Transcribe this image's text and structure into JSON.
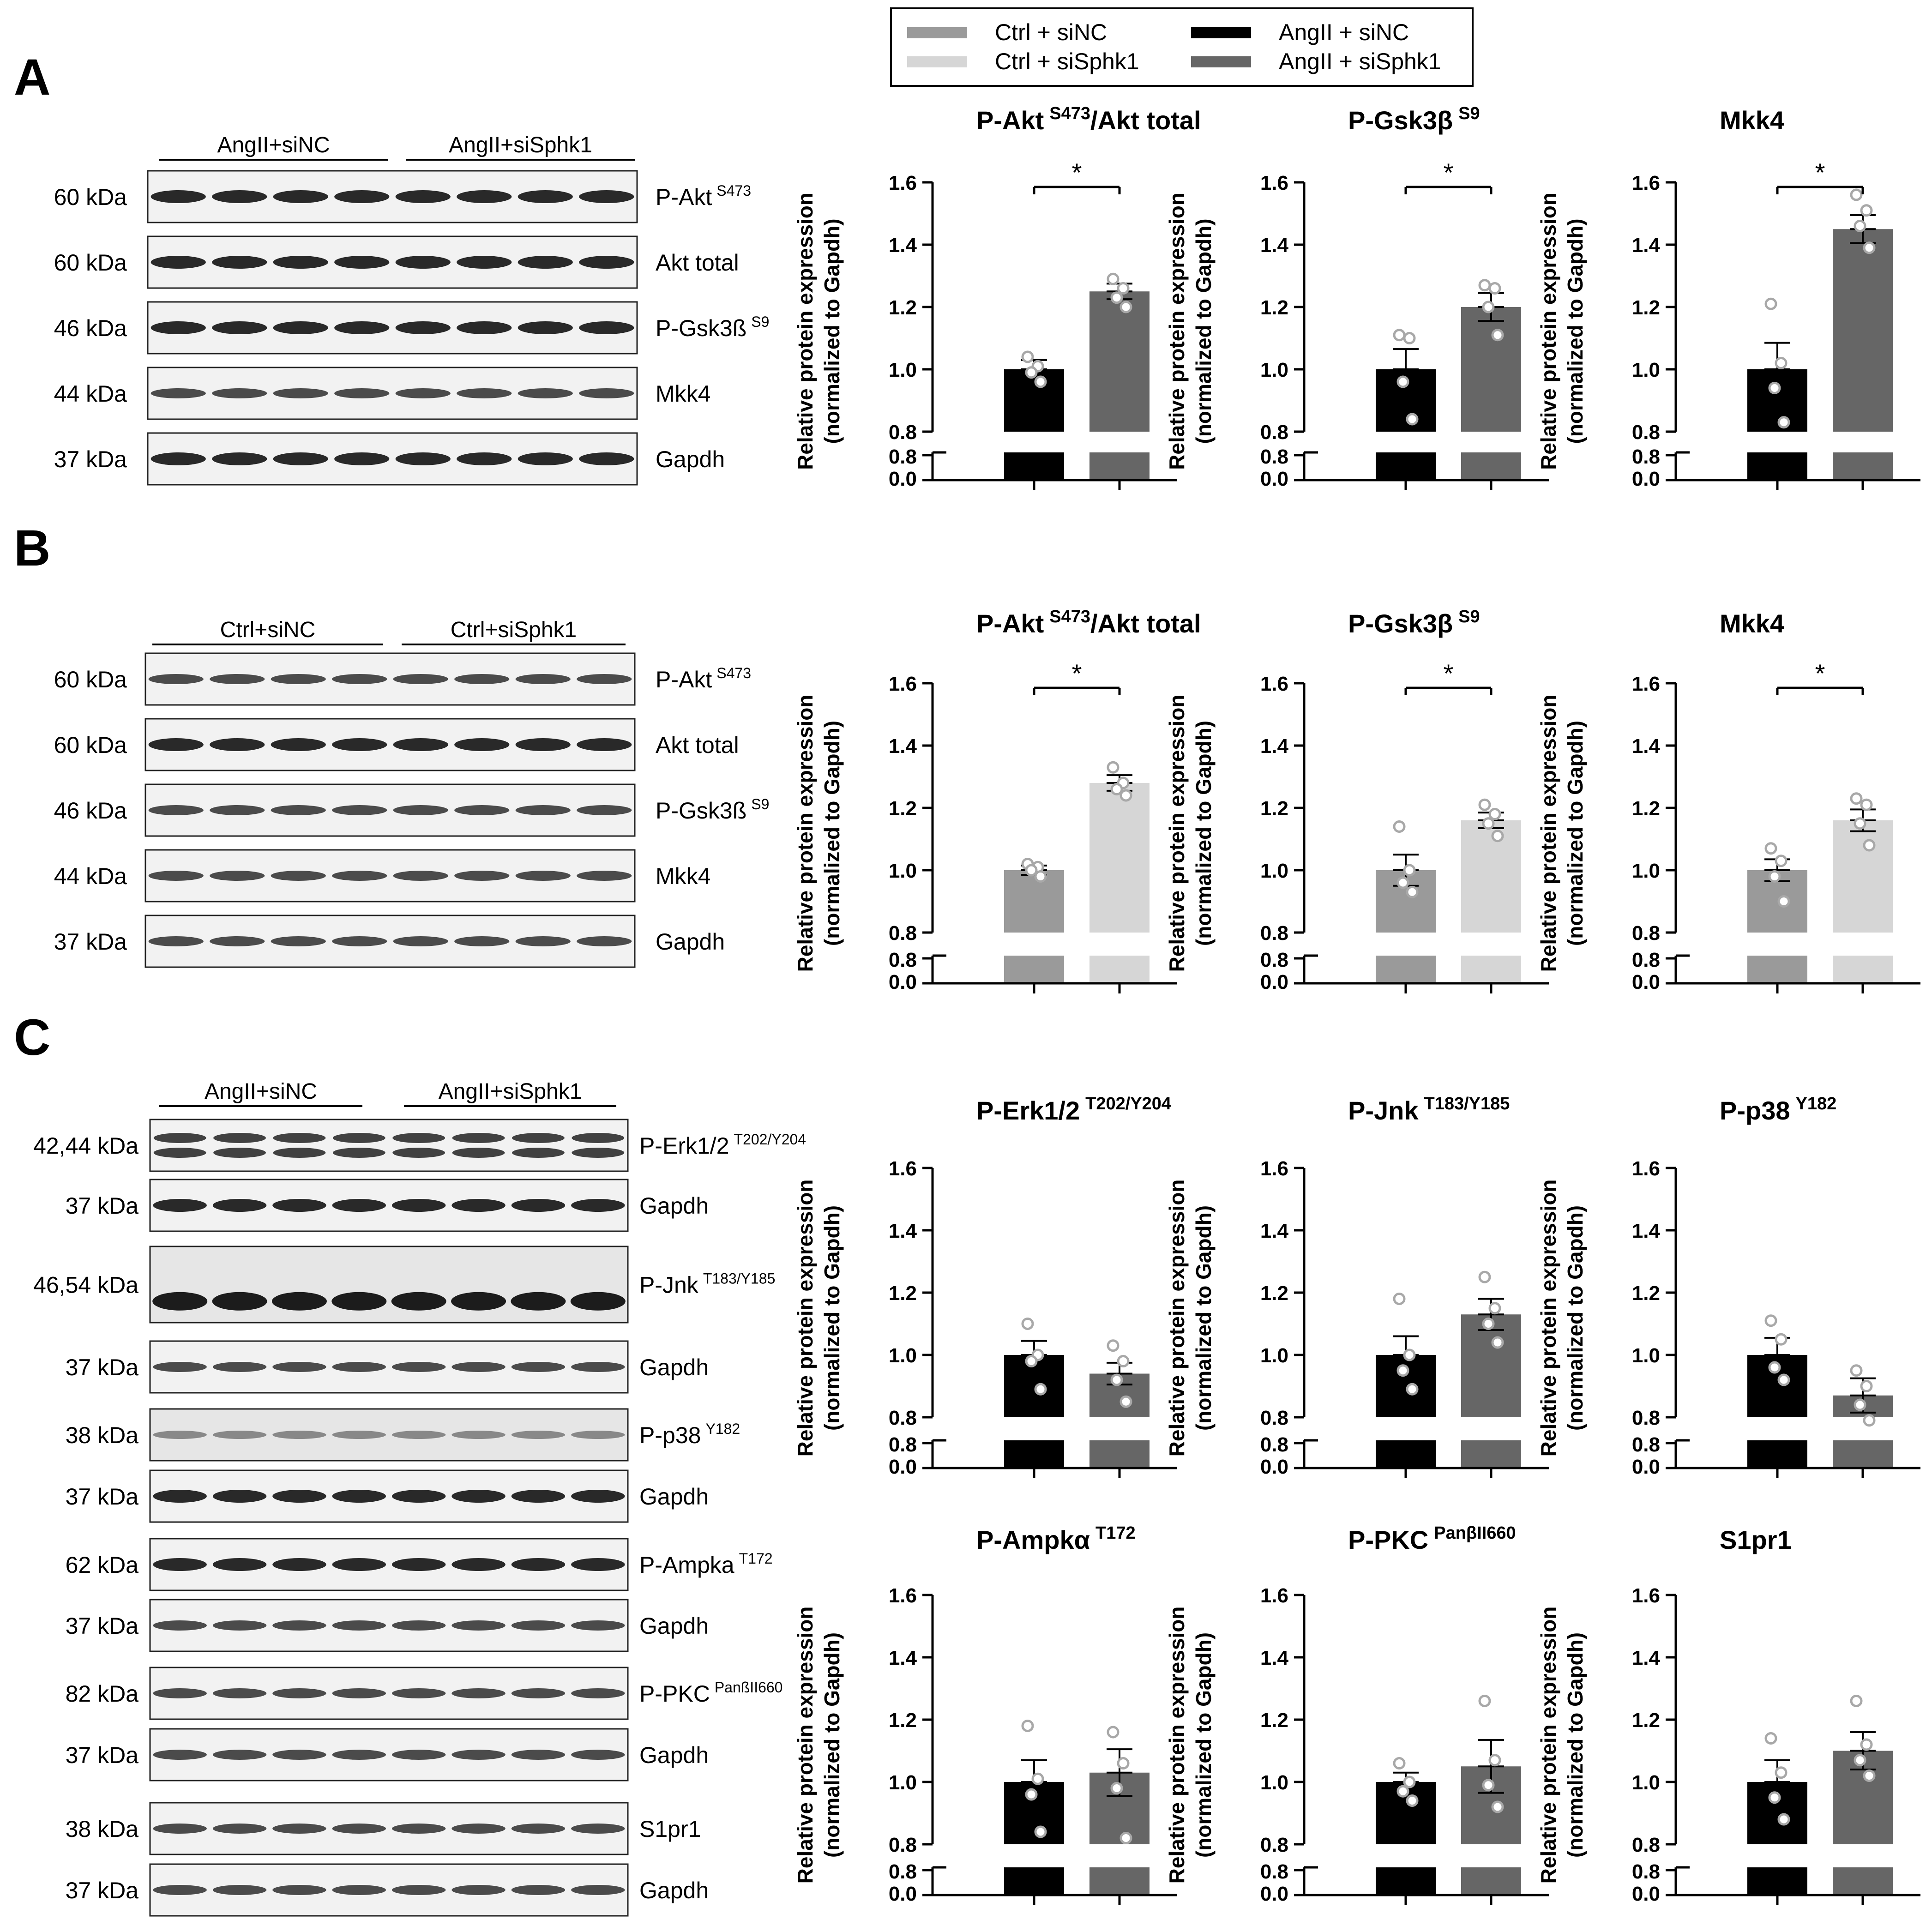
{
  "legend": {
    "entries": [
      {
        "label": "Ctrl + siNC",
        "color": "#9a9a9a"
      },
      {
        "label": "Ctrl + siSphk1",
        "color": "#d6d6d6"
      },
      {
        "label": "AngII + siNC",
        "color": "#000000"
      },
      {
        "label": "AngII + siSphk1",
        "color": "#666666"
      }
    ]
  },
  "panels": [
    {
      "letter": "A",
      "blots": {
        "groups": [
          "AngII+siNC",
          "AngII+siSphk1"
        ],
        "rows": [
          {
            "kda": "60 kDa",
            "name": "P-Akt",
            "sup": "S473",
            "tone": "dark"
          },
          {
            "kda": "60 kDa",
            "name": "Akt total",
            "sup": "",
            "tone": "dark"
          },
          {
            "kda": "46 kDa",
            "name": "P-Gsk3ß",
            "sup": "S9",
            "tone": "dark"
          },
          {
            "kda": "44 kDa",
            "name": "Mkk4",
            "sup": "",
            "tone": "mid"
          },
          {
            "kda": "37 kDa",
            "name": "Gapdh",
            "sup": "",
            "tone": "dark"
          }
        ]
      }
    },
    {
      "letter": "B",
      "blots": {
        "groups": [
          "Ctrl+siNC",
          "Ctrl+siSphk1"
        ],
        "rows": [
          {
            "kda": "60 kDa",
            "name": "P-Akt",
            "sup": "S473",
            "tone": "mid"
          },
          {
            "kda": "60 kDa",
            "name": "Akt total",
            "sup": "",
            "tone": "dark"
          },
          {
            "kda": "46 kDa",
            "name": "P-Gsk3ß",
            "sup": "S9",
            "tone": "mid"
          },
          {
            "kda": "44 kDa",
            "name": "Mkk4",
            "sup": "",
            "tone": "mid"
          },
          {
            "kda": "37 kDa",
            "name": "Gapdh",
            "sup": "",
            "tone": "mid"
          }
        ]
      }
    },
    {
      "letter": "C",
      "blots": {
        "groups": [
          "AngII+siNC",
          "AngII+siSphk1"
        ],
        "rows": [
          {
            "kda": "42,44 kDa",
            "name": "P-Erk1/2",
            "sup": "T202/Y204",
            "tone": "double"
          },
          {
            "kda": "37 kDa",
            "name": "Gapdh",
            "sup": "",
            "tone": "dark"
          },
          {
            "kda": "46,54 kDa",
            "name": "P-Jnk",
            "sup": "T183/Y185",
            "tone": "jnk"
          },
          {
            "kda": "37 kDa",
            "name": "Gapdh",
            "sup": "",
            "tone": "mid"
          },
          {
            "kda": "38 kDa",
            "name": "P-p38",
            "sup": "Y182",
            "tone": "faint"
          },
          {
            "kda": "37 kDa",
            "name": "Gapdh",
            "sup": "",
            "tone": "dark"
          },
          {
            "kda": "62 kDa",
            "name": "P-Ampka",
            "sup": "T172",
            "tone": "dark"
          },
          {
            "kda": "37 kDa",
            "name": "Gapdh",
            "sup": "",
            "tone": "mid"
          },
          {
            "kda": "82 kDa",
            "name": "P-PKC",
            "sup": "PanßII660",
            "tone": "mid"
          },
          {
            "kda": "37 kDa",
            "name": "Gapdh",
            "sup": "",
            "tone": "mid"
          },
          {
            "kda": "38 kDa",
            "name": "S1pr1",
            "sup": "",
            "tone": "mid"
          },
          {
            "kda": "37 kDa",
            "name": "Gapdh",
            "sup": "",
            "tone": "mid"
          }
        ]
      }
    }
  ],
  "axis": {
    "ylabel_line1": "Relative protein expression",
    "ylabel_line2": "(normalized to Gapdh)",
    "upper_ticks": [
      "1.6",
      "1.4",
      "1.2",
      "1.0",
      "0.8"
    ],
    "lower_ticks": [
      "0.8",
      "0.0"
    ]
  },
  "chart_data": [
    {
      "type": "bar",
      "panel": "A",
      "title": "P-Akt",
      "title_sup": "S473",
      "title_suffix": "/Akt total",
      "categories": [
        "AngII + siNC",
        "AngII + siSphk1"
      ],
      "colors": [
        "#000000",
        "#666666"
      ],
      "values": [
        1.0,
        1.25
      ],
      "errors": [
        0.03,
        0.025
      ],
      "points": [
        [
          1.04,
          1.01,
          0.99,
          0.96
        ],
        [
          1.29,
          1.26,
          1.23,
          1.2
        ]
      ],
      "significance": "*",
      "ylim": [
        0.0,
        1.6
      ]
    },
    {
      "type": "bar",
      "panel": "A",
      "title": "P-Gsk3β",
      "title_sup": "S9",
      "title_suffix": "",
      "categories": [
        "AngII + siNC",
        "AngII + siSphk1"
      ],
      "colors": [
        "#000000",
        "#666666"
      ],
      "values": [
        1.0,
        1.2
      ],
      "errors": [
        0.065,
        0.045
      ],
      "points": [
        [
          1.11,
          1.1,
          0.96,
          0.84
        ],
        [
          1.27,
          1.26,
          1.2,
          1.11
        ]
      ],
      "significance": "*",
      "ylim": [
        0.0,
        1.6
      ]
    },
    {
      "type": "bar",
      "panel": "A",
      "title": "Mkk4",
      "title_sup": "",
      "title_suffix": "",
      "categories": [
        "AngII + siNC",
        "AngII + siSphk1"
      ],
      "colors": [
        "#000000",
        "#666666"
      ],
      "values": [
        1.0,
        1.45
      ],
      "errors": [
        0.085,
        0.045
      ],
      "points": [
        [
          1.21,
          1.02,
          0.94,
          0.83
        ],
        [
          1.56,
          1.51,
          1.46,
          1.39
        ]
      ],
      "significance": "*",
      "ylim": [
        0.0,
        1.6
      ]
    },
    {
      "type": "bar",
      "panel": "B",
      "title": "P-Akt",
      "title_sup": "S473",
      "title_suffix": "/Akt total",
      "categories": [
        "Ctrl + siNC",
        "Ctrl + siSphk1"
      ],
      "colors": [
        "#9a9a9a",
        "#d6d6d6"
      ],
      "values": [
        1.0,
        1.28
      ],
      "errors": [
        0.015,
        0.025
      ],
      "points": [
        [
          1.02,
          1.01,
          1.0,
          0.98
        ],
        [
          1.33,
          1.28,
          1.26,
          1.24
        ]
      ],
      "significance": "*",
      "ylim": [
        0.0,
        1.6
      ]
    },
    {
      "type": "bar",
      "panel": "B",
      "title": "P-Gsk3β",
      "title_sup": "S9",
      "title_suffix": "",
      "categories": [
        "Ctrl + siNC",
        "Ctrl + siSphk1"
      ],
      "colors": [
        "#9a9a9a",
        "#d6d6d6"
      ],
      "values": [
        1.0,
        1.16
      ],
      "errors": [
        0.05,
        0.025
      ],
      "points": [
        [
          1.14,
          1.0,
          0.96,
          0.93
        ],
        [
          1.21,
          1.18,
          1.15,
          1.11
        ]
      ],
      "significance": "*",
      "ylim": [
        0.0,
        1.6
      ]
    },
    {
      "type": "bar",
      "panel": "B",
      "title": "Mkk4",
      "title_sup": "",
      "title_suffix": "",
      "categories": [
        "Ctrl + siNC",
        "Ctrl + siSphk1"
      ],
      "colors": [
        "#9a9a9a",
        "#d6d6d6"
      ],
      "values": [
        1.0,
        1.16
      ],
      "errors": [
        0.035,
        0.035
      ],
      "points": [
        [
          1.07,
          1.03,
          0.98,
          0.9
        ],
        [
          1.23,
          1.21,
          1.15,
          1.08
        ]
      ],
      "significance": "*",
      "ylim": [
        0.0,
        1.6
      ]
    },
    {
      "type": "bar",
      "panel": "C",
      "title": "P-Erk1/2",
      "title_sup": "T202/Y204",
      "title_suffix": "",
      "categories": [
        "AngII + siNC",
        "AngII + siSphk1"
      ],
      "colors": [
        "#000000",
        "#666666"
      ],
      "values": [
        1.0,
        0.94
      ],
      "errors": [
        0.045,
        0.035
      ],
      "points": [
        [
          1.1,
          1.0,
          0.98,
          0.89
        ],
        [
          1.03,
          0.98,
          0.92,
          0.85
        ]
      ],
      "significance": "",
      "ylim": [
        0.0,
        1.6
      ]
    },
    {
      "type": "bar",
      "panel": "C",
      "title": "P-Jnk",
      "title_sup": "T183/Y185",
      "title_suffix": "",
      "categories": [
        "AngII + siNC",
        "AngII + siSphk1"
      ],
      "colors": [
        "#000000",
        "#666666"
      ],
      "values": [
        1.0,
        1.13
      ],
      "errors": [
        0.06,
        0.05
      ],
      "points": [
        [
          1.18,
          1.0,
          0.95,
          0.89
        ],
        [
          1.25,
          1.15,
          1.1,
          1.04
        ]
      ],
      "significance": "",
      "ylim": [
        0.0,
        1.6
      ]
    },
    {
      "type": "bar",
      "panel": "C",
      "title": "P-p38",
      "title_sup": "Y182",
      "title_suffix": "",
      "categories": [
        "AngII + siNC",
        "AngII + siSphk1"
      ],
      "colors": [
        "#000000",
        "#666666"
      ],
      "values": [
        1.0,
        0.87
      ],
      "errors": [
        0.055,
        0.055
      ],
      "points": [
        [
          1.11,
          1.05,
          0.96,
          0.92
        ],
        [
          0.95,
          0.9,
          0.84,
          0.79
        ]
      ],
      "significance": "",
      "ylim": [
        0.0,
        1.6
      ]
    },
    {
      "type": "bar",
      "panel": "C",
      "title": "P-Ampkα",
      "title_sup": "T172",
      "title_suffix": "",
      "categories": [
        "AngII + siNC",
        "AngII + siSphk1"
      ],
      "colors": [
        "#000000",
        "#666666"
      ],
      "values": [
        1.0,
        1.03
      ],
      "errors": [
        0.07,
        0.075
      ],
      "points": [
        [
          1.18,
          1.01,
          0.96,
          0.84
        ],
        [
          1.16,
          1.06,
          0.98,
          0.82
        ]
      ],
      "significance": "",
      "ylim": [
        0.0,
        1.6
      ]
    },
    {
      "type": "bar",
      "panel": "C",
      "title": "P-PKC",
      "title_sup": "PanβII660",
      "title_suffix": "",
      "categories": [
        "AngII + siNC",
        "AngII + siSphk1"
      ],
      "colors": [
        "#000000",
        "#666666"
      ],
      "values": [
        1.0,
        1.05
      ],
      "errors": [
        0.03,
        0.085
      ],
      "points": [
        [
          1.06,
          1.0,
          0.97,
          0.94
        ],
        [
          1.26,
          1.07,
          0.99,
          0.92
        ]
      ],
      "significance": "",
      "ylim": [
        0.0,
        1.6
      ]
    },
    {
      "type": "bar",
      "panel": "C",
      "title": "S1pr1",
      "title_sup": "",
      "title_suffix": "",
      "categories": [
        "AngII + siNC",
        "AngII + siSphk1"
      ],
      "colors": [
        "#000000",
        "#666666"
      ],
      "values": [
        1.0,
        1.1
      ],
      "errors": [
        0.07,
        0.06
      ],
      "points": [
        [
          1.14,
          1.03,
          0.95,
          0.88
        ],
        [
          1.26,
          1.12,
          1.07,
          1.02
        ]
      ],
      "significance": "",
      "ylim": [
        0.0,
        1.6
      ]
    }
  ]
}
